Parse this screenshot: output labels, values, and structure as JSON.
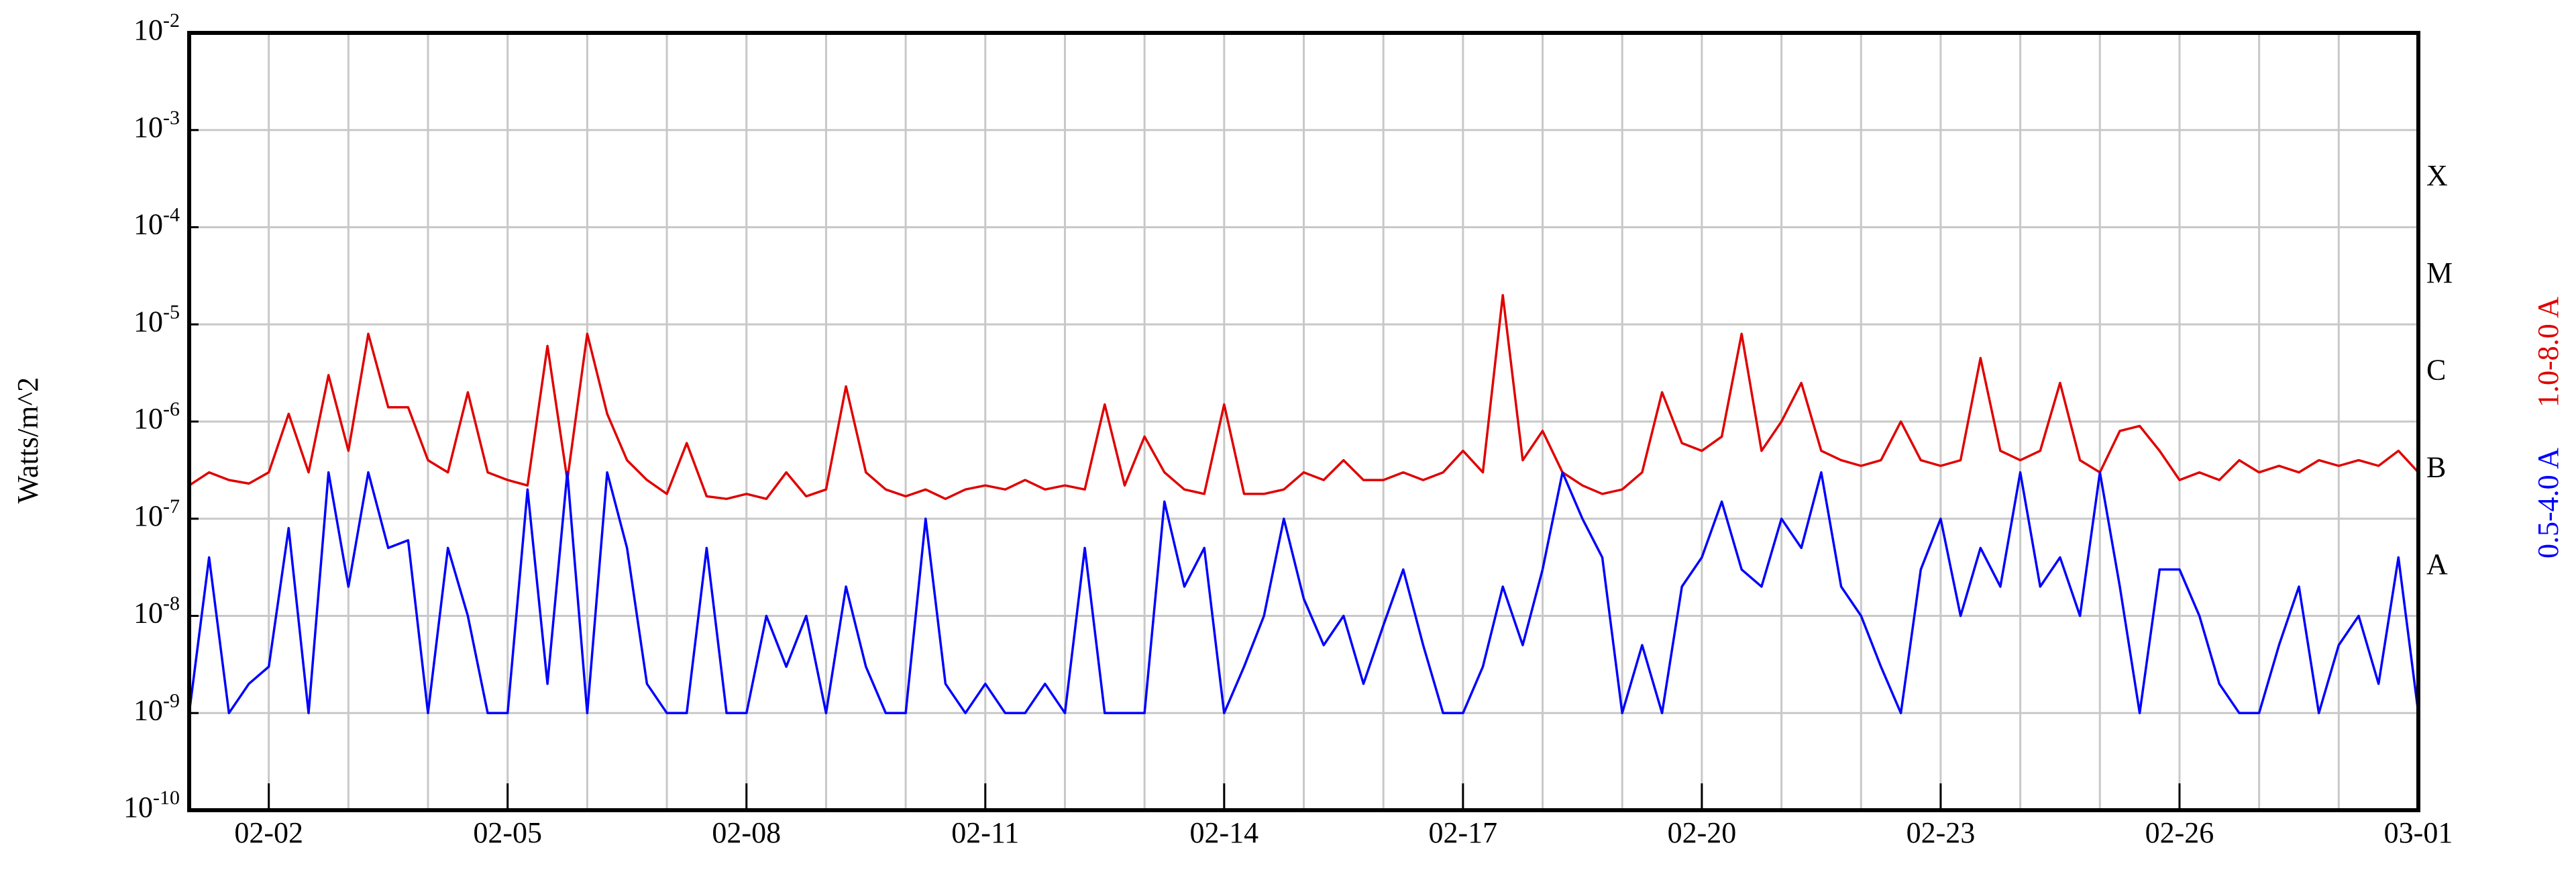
{
  "chart_data": {
    "type": "line",
    "ylabel": "Watts/m^2",
    "ylog": true,
    "grid": true,
    "ylim": [
      1e-10,
      0.01
    ],
    "yticks": [
      {
        "value": 1e-10,
        "label": "10",
        "exponent": "-10"
      },
      {
        "value": 1e-09,
        "label": "10",
        "exponent": "-9"
      },
      {
        "value": 1e-08,
        "label": "10",
        "exponent": "-8"
      },
      {
        "value": 1e-07,
        "label": "10",
        "exponent": "-7"
      },
      {
        "value": 1e-06,
        "label": "10",
        "exponent": "-6"
      },
      {
        "value": 1e-05,
        "label": "10",
        "exponent": "-5"
      },
      {
        "value": 0.0001,
        "label": "10",
        "exponent": "-4"
      },
      {
        "value": 0.001,
        "label": "10",
        "exponent": "-3"
      },
      {
        "value": 0.01,
        "label": "10",
        "exponent": "-2"
      }
    ],
    "xlim": [
      0,
      28
    ],
    "xticks": [
      {
        "value": 1,
        "label": "02-02"
      },
      {
        "value": 4,
        "label": "02-05"
      },
      {
        "value": 7,
        "label": "02-08"
      },
      {
        "value": 10,
        "label": "02-11"
      },
      {
        "value": 13,
        "label": "02-14"
      },
      {
        "value": 16,
        "label": "02-17"
      },
      {
        "value": 19,
        "label": "02-20"
      },
      {
        "value": 22,
        "label": "02-23"
      },
      {
        "value": 25,
        "label": "02-26"
      },
      {
        "value": 28,
        "label": "03-01"
      }
    ],
    "xminorticks": [
      2,
      3,
      5,
      6,
      8,
      9,
      11,
      12,
      14,
      15,
      17,
      18,
      20,
      21,
      23,
      24,
      26,
      27
    ],
    "flare_classes": [
      {
        "value": 0.0001,
        "label": "X"
      },
      {
        "value": 1e-05,
        "label": "M"
      },
      {
        "value": 1e-06,
        "label": "C"
      },
      {
        "value": 1e-07,
        "label": "B"
      },
      {
        "value": 1e-08,
        "label": "A"
      }
    ],
    "x": [
      0,
      0.25,
      0.5,
      0.75,
      1,
      1.25,
      1.5,
      1.75,
      2,
      2.25,
      2.5,
      2.75,
      3,
      3.25,
      3.5,
      3.75,
      4,
      4.25,
      4.5,
      4.75,
      5,
      5.25,
      5.5,
      5.75,
      6,
      6.25,
      6.5,
      6.75,
      7,
      7.25,
      7.5,
      7.75,
      8,
      8.25,
      8.5,
      8.75,
      9,
      9.25,
      9.5,
      9.75,
      10,
      10.25,
      10.5,
      10.75,
      11,
      11.25,
      11.5,
      11.75,
      12,
      12.25,
      12.5,
      12.75,
      13,
      13.25,
      13.5,
      13.75,
      14,
      14.25,
      14.5,
      14.75,
      15,
      15.25,
      15.5,
      15.75,
      16,
      16.25,
      16.5,
      16.75,
      17,
      17.25,
      17.5,
      17.75,
      18,
      18.25,
      18.5,
      18.75,
      19,
      19.25,
      19.5,
      19.75,
      20,
      20.25,
      20.5,
      20.75,
      21,
      21.25,
      21.5,
      21.75,
      22,
      22.25,
      22.5,
      22.75,
      23,
      23.25,
      23.5,
      23.75,
      24,
      24.25,
      24.5,
      24.75,
      25,
      25.25,
      25.5,
      25.75,
      26,
      26.25,
      26.5,
      26.75,
      27,
      27.25,
      27.5,
      27.75,
      28
    ],
    "series": [
      {
        "name": "1.0-8.0 A",
        "color": "#e00000",
        "values": [
          2.2e-07,
          3e-07,
          2.5e-07,
          2.3e-07,
          3e-07,
          1.2e-06,
          3e-07,
          3e-06,
          5e-07,
          8e-06,
          1.4e-06,
          1.4e-06,
          4e-07,
          3e-07,
          2e-06,
          3e-07,
          2.5e-07,
          2.2e-07,
          6e-06,
          2.5e-07,
          8e-06,
          1.2e-06,
          4e-07,
          2.5e-07,
          1.8e-07,
          6e-07,
          1.7e-07,
          1.6e-07,
          1.8e-07,
          1.6e-07,
          3e-07,
          1.7e-07,
          2e-07,
          2.3e-06,
          3e-07,
          2e-07,
          1.7e-07,
          2e-07,
          1.6e-07,
          2e-07,
          2.2e-07,
          2e-07,
          2.5e-07,
          2e-07,
          2.2e-07,
          2e-07,
          1.5e-06,
          2.2e-07,
          7e-07,
          3e-07,
          2e-07,
          1.8e-07,
          1.5e-06,
          1.8e-07,
          1.8e-07,
          2e-07,
          3e-07,
          2.5e-07,
          4e-07,
          2.5e-07,
          2.5e-07,
          3e-07,
          2.5e-07,
          3e-07,
          5e-07,
          3e-07,
          2e-05,
          4e-07,
          8e-07,
          3e-07,
          2.2e-07,
          1.8e-07,
          2e-07,
          3e-07,
          2e-06,
          6e-07,
          5e-07,
          7e-07,
          8e-06,
          5e-07,
          1e-06,
          2.5e-06,
          5e-07,
          4e-07,
          3.5e-07,
          4e-07,
          1e-06,
          4e-07,
          3.5e-07,
          4e-07,
          4.5e-06,
          5e-07,
          4e-07,
          5e-07,
          2.5e-06,
          4e-07,
          3e-07,
          8e-07,
          9e-07,
          5e-07,
          2.5e-07,
          3e-07,
          2.5e-07,
          4e-07,
          3e-07,
          3.5e-07,
          3e-07,
          4e-07,
          3.5e-07,
          4e-07,
          3.5e-07,
          5e-07,
          3e-07
        ]
      },
      {
        "name": "0.5-4.0 A",
        "color": "#0000ff",
        "values": [
          1e-09,
          4e-08,
          1e-09,
          2e-09,
          3e-09,
          8e-08,
          1e-09,
          3e-07,
          2e-08,
          3e-07,
          5e-08,
          6e-08,
          1e-09,
          5e-08,
          1e-08,
          1e-09,
          1e-09,
          2e-07,
          2e-09,
          3e-07,
          1e-09,
          3e-07,
          5e-08,
          2e-09,
          1e-09,
          1e-09,
          5e-08,
          1e-09,
          1e-09,
          1e-08,
          3e-09,
          1e-08,
          1e-09,
          2e-08,
          3e-09,
          1e-09,
          1e-09,
          1e-07,
          2e-09,
          1e-09,
          2e-09,
          1e-09,
          1e-09,
          2e-09,
          1e-09,
          5e-08,
          1e-09,
          1e-09,
          1e-09,
          1.5e-07,
          2e-08,
          5e-08,
          1e-09,
          3e-09,
          1e-08,
          1e-07,
          1.5e-08,
          5e-09,
          1e-08,
          2e-09,
          8e-09,
          3e-08,
          5e-09,
          1e-09,
          1e-09,
          3e-09,
          2e-08,
          5e-09,
          3e-08,
          3e-07,
          1e-07,
          4e-08,
          1e-09,
          5e-09,
          1e-09,
          2e-08,
          4e-08,
          1.5e-07,
          3e-08,
          2e-08,
          1e-07,
          5e-08,
          3e-07,
          2e-08,
          1e-08,
          3e-09,
          1e-09,
          3e-08,
          1e-07,
          1e-08,
          5e-08,
          2e-08,
          3e-07,
          2e-08,
          4e-08,
          1e-08,
          3e-07,
          2e-08,
          1e-09,
          3e-08,
          3e-08,
          1e-08,
          2e-09,
          1e-09,
          1e-09,
          5e-09,
          2e-08,
          1e-09,
          5e-09,
          1e-08,
          2e-09,
          4e-08,
          1e-09
        ]
      }
    ]
  }
}
